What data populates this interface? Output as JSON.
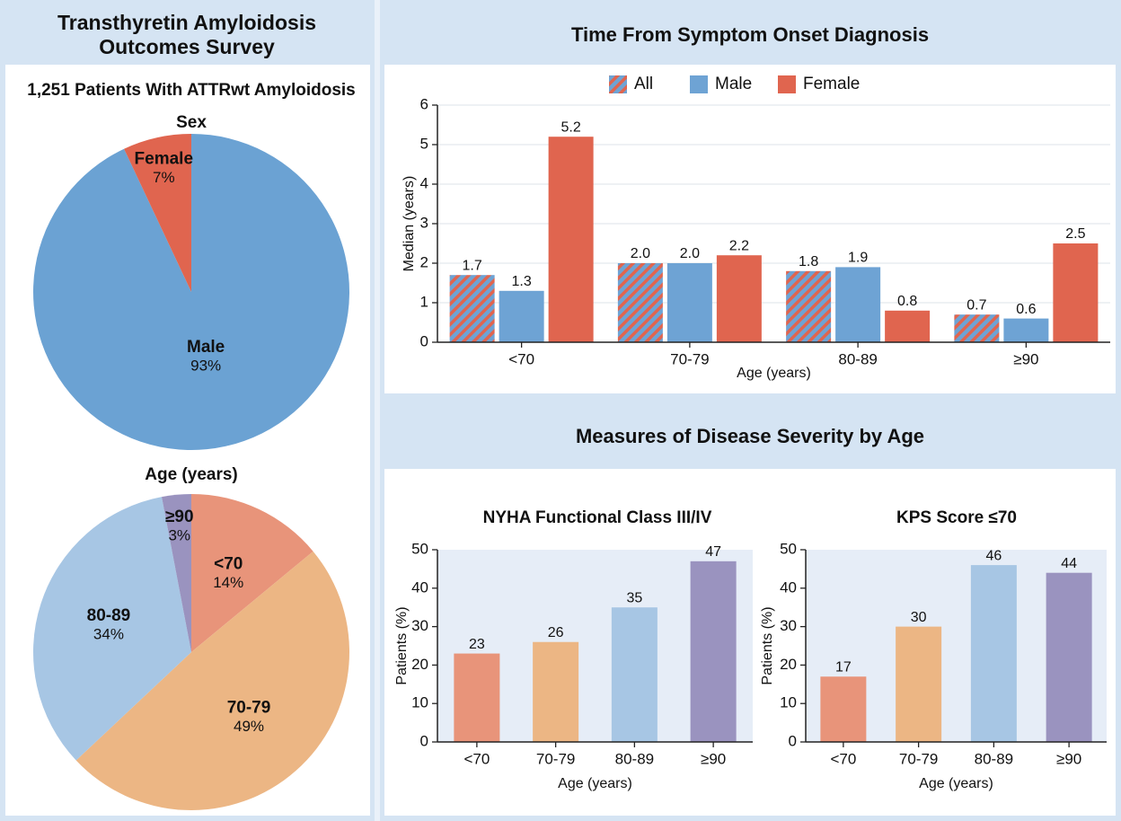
{
  "header": {
    "left_title": "Transthyretin Amyloidosis Outcomes Survey",
    "subtitle": "1,251 Patients With ATTRwt Amyloidosis",
    "severity_title": "Measures of Disease Severity by Age"
  },
  "chart_data": [
    {
      "type": "pie",
      "title": "Sex",
      "categories": [
        "Male",
        "Female"
      ],
      "values": [
        93,
        7
      ],
      "value_labels": [
        "93%",
        "7%"
      ],
      "colors": [
        "#6ba2d3",
        "#e0654f"
      ]
    },
    {
      "type": "pie",
      "title": "Age (years)",
      "categories": [
        "<70",
        "70-79",
        "80-89",
        "≥90"
      ],
      "values": [
        14,
        49,
        34,
        3
      ],
      "value_labels": [
        "14%",
        "49%",
        "34%",
        "3%"
      ],
      "colors": [
        "#e8947a",
        "#ecb684",
        "#a7c6e4",
        "#9a93bf"
      ]
    },
    {
      "type": "bar",
      "title": "Time From Symptom Onset Diagnosis",
      "xlabel": "Age (years)",
      "ylabel": "Median (years)",
      "categories": [
        "<70",
        "70-79",
        "80-89",
        "≥90"
      ],
      "series": [
        {
          "name": "All",
          "color": "#6ea3d4",
          "hatch_color": "#e0654f",
          "values": [
            1.7,
            2.0,
            1.8,
            0.7
          ],
          "value_labels": [
            "1.7",
            "2.0",
            "1.8",
            "0.7"
          ]
        },
        {
          "name": "Male",
          "color": "#6ea3d4",
          "values": [
            1.3,
            2.0,
            1.9,
            0.6
          ],
          "value_labels": [
            "1.3",
            "2.0",
            "1.9",
            "0.6"
          ]
        },
        {
          "name": "Female",
          "color": "#e0654f",
          "values": [
            5.2,
            2.2,
            0.8,
            2.5
          ],
          "value_labels": [
            "5.2",
            "2.2",
            "0.8",
            "2.5"
          ]
        }
      ],
      "ylim": [
        0,
        6
      ],
      "yticks": [
        0,
        1,
        2,
        3,
        4,
        5,
        6
      ],
      "grid": true,
      "legend": "top"
    },
    {
      "type": "bar",
      "title": "NYHA Functional Class III/IV",
      "xlabel": "Age (years)",
      "ylabel": "Patients (%)",
      "categories": [
        "<70",
        "70-79",
        "80-89",
        "≥90"
      ],
      "values": [
        23,
        26,
        35,
        47
      ],
      "colors": [
        "#e8947a",
        "#ecb684",
        "#a7c6e4",
        "#9a93bf"
      ],
      "ylim": [
        0,
        50
      ],
      "yticks": [
        0,
        10,
        20,
        30,
        40,
        50
      ]
    },
    {
      "type": "bar",
      "title": "KPS Score ≤70",
      "xlabel": "Age (years)",
      "ylabel": "Patients (%)",
      "categories": [
        "<70",
        "70-79",
        "80-89",
        "≥90"
      ],
      "values": [
        17,
        30,
        46,
        44
      ],
      "colors": [
        "#e8947a",
        "#ecb684",
        "#a7c6e4",
        "#9a93bf"
      ],
      "ylim": [
        0,
        50
      ],
      "yticks": [
        0,
        10,
        20,
        30,
        40,
        50
      ]
    }
  ]
}
